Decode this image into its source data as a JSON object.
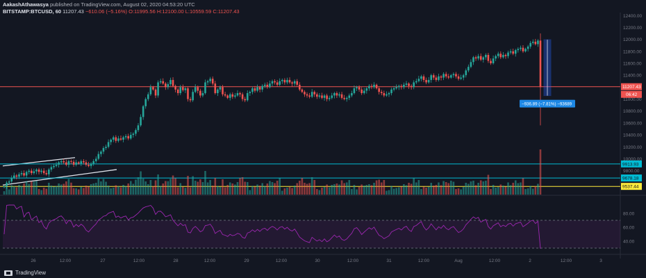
{
  "header": {
    "author": "AakashAthawasya",
    "published": "published on TradingView.com, August 02, 2020 04:53:20 UTC",
    "symbol": "BITSTAMP:BTCUSD, 60",
    "last": "11207.43",
    "change": "−610.06 (−5.16%)",
    "open": "O:11995.56",
    "high": "H:12100.00",
    "low": "L:10559.59",
    "close": "C:11207.43"
  },
  "footer": {
    "brand": "TradingView",
    "icon": "tradingview-logo-icon"
  },
  "colors": {
    "background": "#131722",
    "up": "#26a69a",
    "down": "#ef5350",
    "rsi": "#9c27b0",
    "cyan": "#00bcd4",
    "yellow": "#ffeb3b",
    "measure": "#2962ff"
  },
  "measure_label": "−936.89 (−7.81%) −93689",
  "countdown": "06:42",
  "chart_data": {
    "type": "candlestick",
    "x_ticks": [
      "26",
      "12:00",
      "27",
      "12:00",
      "28",
      "12:00",
      "29",
      "12:00",
      "30",
      "12:00",
      "31",
      "12:00",
      "Aug",
      "12:00",
      "2",
      "12:00",
      "3"
    ],
    "price_ticks": [
      "12400.00",
      "12200.00",
      "12000.00",
      "11800.00",
      "11600.00",
      "11400.00",
      "11200.00",
      "11000.00",
      "10800.00",
      "10600.00",
      "10400.00",
      "10200.00",
      "10000.00",
      "9800.00"
    ],
    "rsi_ticks": [
      "80.00",
      "60.00",
      "40.00"
    ],
    "price_range": [
      9400,
      12450
    ],
    "horizontal_levels": [
      {
        "value": 11207.43,
        "color": "#ef5350",
        "label": "11207.43"
      },
      {
        "value": 9913.93,
        "color": "#00bcd4",
        "label": "9913.93"
      },
      {
        "value": 9678.18,
        "color": "#00bcd4",
        "label": "9678.18"
      },
      {
        "value": 9537.44,
        "color": "#ffeb3b",
        "label": "9537.44"
      }
    ],
    "closes": [
      9540,
      9600,
      9620,
      9680,
      9720,
      9700,
      9740,
      9760,
      9720,
      9780,
      9800,
      9760,
      9790,
      9820,
      9780,
      9800,
      9760,
      9740,
      9820,
      9860,
      9880,
      9900,
      9940,
      9960,
      9940,
      9900,
      9960,
      9950,
      9900,
      9940,
      9920,
      9960,
      9940,
      9900,
      9880,
      9920,
      9960,
      10000,
      10080,
      10120,
      10180,
      10200,
      10280,
      10320,
      10360,
      10300,
      10340,
      10320,
      10360,
      10380,
      10340,
      10400,
      10420,
      10480,
      10560,
      10700,
      10880,
      11000,
      11080,
      11200,
      11160,
      11060,
      11280,
      11300,
      11260,
      11200,
      11250,
      11320,
      11220,
      11160,
      11100,
      11200,
      11150,
      11180,
      11000,
      10980,
      11120,
      11200,
      11140,
      11060,
      11100,
      11280,
      11300,
      11340,
      11260,
      11100,
      11160,
      11200,
      11080,
      11060,
      11020,
      11080,
      11040,
      11060,
      11100,
      11080,
      11000,
      10980,
      11100,
      11120,
      11180,
      11140,
      11200,
      11160,
      11220,
      11240,
      11200,
      11260,
      11300,
      11280,
      11240,
      11300,
      11320,
      11280,
      11320,
      11280,
      11260,
      11300,
      11240,
      11160,
      11120,
      11080,
      11060,
      11040,
      11120,
      11080,
      11040,
      11060,
      11020,
      11060,
      11000,
      11020,
      11060,
      11100,
      11060,
      11080,
      11020,
      11000,
      11020,
      11060,
      11100,
      11180,
      11200,
      11160,
      11100,
      11140,
      11180,
      11220,
      11200,
      11240,
      11180,
      11120,
      11100,
      11060,
      11080,
      11100,
      11160,
      11180,
      11200,
      11220,
      11200,
      11240,
      11260,
      11220,
      11200,
      11280,
      11300,
      11340,
      11380,
      11320,
      11280,
      11320,
      11400,
      11360,
      11320,
      11380,
      11360,
      11420,
      11380,
      11360,
      11400,
      11420,
      11380,
      11340,
      11360,
      11400,
      11480,
      11540,
      11620,
      11700,
      11680,
      11720,
      11660,
      11700,
      11740,
      11640,
      11600,
      11680,
      11720,
      11760,
      11700,
      11740,
      11720,
      11780,
      11800,
      11760,
      11820,
      11840,
      11860,
      11800,
      11840,
      11880,
      11940,
      11960,
      11920,
      11980,
      11200
    ],
    "current_price": 11207.43,
    "rsi_level_lines": [
      70,
      30
    ],
    "rsi_range": [
      25,
      95
    ]
  }
}
